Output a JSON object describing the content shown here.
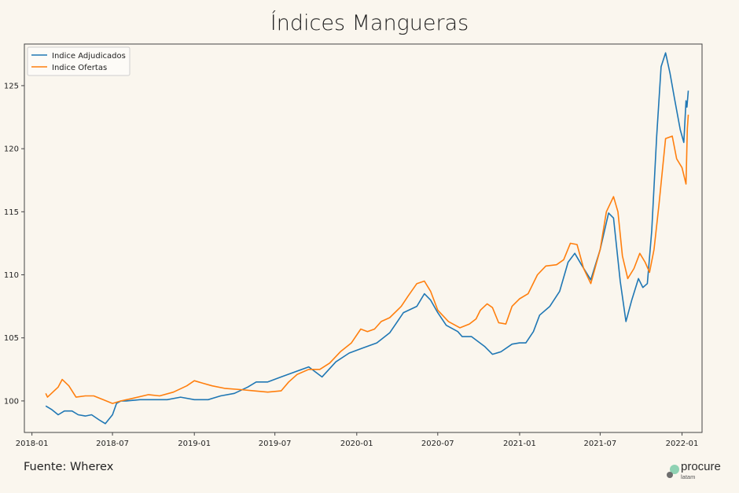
{
  "page": {
    "title": "Índices Mangueras",
    "source": "Fuente: Wherex"
  },
  "brand": {
    "name": "procure",
    "sub": "latam",
    "color": "#7cc7a8"
  },
  "chart_data": {
    "type": "line",
    "title": "Índices Mangueras",
    "xlabel": "",
    "ylabel": "",
    "background": "#faf6ee",
    "grid": false,
    "legend_position": "top-left",
    "xlim": [
      "2017-12-15",
      "2022-02-15"
    ],
    "ylim": [
      97.5,
      128.3
    ],
    "x_ticks": [
      "2018-01",
      "2018-07",
      "2019-01",
      "2019-07",
      "2020-01",
      "2020-07",
      "2021-01",
      "2021-07",
      "2022-01"
    ],
    "y_ticks": [
      100,
      105,
      110,
      115,
      120,
      125
    ],
    "series": [
      {
        "name": "Indice Adjudicados",
        "color": "#1f77b4",
        "points": [
          [
            "2018-02-01",
            99.6
          ],
          [
            "2018-02-15",
            99.3
          ],
          [
            "2018-03-01",
            98.9
          ],
          [
            "2018-03-15",
            99.2
          ],
          [
            "2018-04-01",
            99.2
          ],
          [
            "2018-04-15",
            98.9
          ],
          [
            "2018-05-01",
            98.8
          ],
          [
            "2018-05-15",
            98.9
          ],
          [
            "2018-06-01",
            98.5
          ],
          [
            "2018-06-15",
            98.2
          ],
          [
            "2018-07-01",
            98.9
          ],
          [
            "2018-07-10",
            99.8
          ],
          [
            "2018-07-20",
            100.0
          ],
          [
            "2018-08-01",
            100.0
          ],
          [
            "2018-09-01",
            100.1
          ],
          [
            "2018-10-01",
            100.1
          ],
          [
            "2018-11-01",
            100.1
          ],
          [
            "2018-12-01",
            100.3
          ],
          [
            "2019-01-01",
            100.1
          ],
          [
            "2019-02-01",
            100.1
          ],
          [
            "2019-03-01",
            100.4
          ],
          [
            "2019-04-01",
            100.6
          ],
          [
            "2019-05-01",
            101.1
          ],
          [
            "2019-05-20",
            101.5
          ],
          [
            "2019-06-15",
            101.5
          ],
          [
            "2019-07-15",
            101.9
          ],
          [
            "2019-08-15",
            102.3
          ],
          [
            "2019-09-15",
            102.7
          ],
          [
            "2019-10-15",
            101.9
          ],
          [
            "2019-11-15",
            103.1
          ],
          [
            "2019-12-15",
            103.8
          ],
          [
            "2020-01-15",
            104.2
          ],
          [
            "2020-02-15",
            104.6
          ],
          [
            "2020-03-15",
            105.4
          ],
          [
            "2020-04-15",
            107.0
          ],
          [
            "2020-05-15",
            107.5
          ],
          [
            "2020-06-01",
            108.5
          ],
          [
            "2020-06-15",
            108.0
          ],
          [
            "2020-07-01",
            107.0
          ],
          [
            "2020-07-20",
            106.0
          ],
          [
            "2020-08-15",
            105.5
          ],
          [
            "2020-08-25",
            105.1
          ],
          [
            "2020-09-15",
            105.1
          ],
          [
            "2020-10-15",
            104.3
          ],
          [
            "2020-11-01",
            103.7
          ],
          [
            "2020-11-20",
            103.9
          ],
          [
            "2020-12-15",
            104.5
          ],
          [
            "2021-01-01",
            104.6
          ],
          [
            "2021-01-15",
            104.6
          ],
          [
            "2021-02-01",
            105.5
          ],
          [
            "2021-02-15",
            106.8
          ],
          [
            "2021-03-10",
            107.5
          ],
          [
            "2021-04-01",
            108.7
          ],
          [
            "2021-04-20",
            111.0
          ],
          [
            "2021-05-05",
            111.7
          ],
          [
            "2021-05-20",
            110.8
          ],
          [
            "2021-06-10",
            109.6
          ],
          [
            "2021-07-01",
            112.0
          ],
          [
            "2021-07-20",
            114.9
          ],
          [
            "2021-07-31",
            114.5
          ],
          [
            "2021-08-15",
            109.5
          ],
          [
            "2021-08-28",
            106.3
          ],
          [
            "2021-09-10",
            108.0
          ],
          [
            "2021-09-25",
            109.7
          ],
          [
            "2021-10-05",
            109.0
          ],
          [
            "2021-10-15",
            109.3
          ],
          [
            "2021-10-25",
            113.5
          ],
          [
            "2021-11-05",
            121.0
          ],
          [
            "2021-11-15",
            126.5
          ],
          [
            "2021-11-25",
            127.6
          ],
          [
            "2021-12-05",
            126.0
          ],
          [
            "2021-12-15",
            124.0
          ],
          [
            "2021-12-28",
            121.5
          ],
          [
            "2022-01-05",
            120.5
          ],
          [
            "2022-01-10",
            123.8
          ],
          [
            "2022-01-12",
            123.3
          ],
          [
            "2022-01-15",
            124.6
          ]
        ]
      },
      {
        "name": "Indice Ofertas",
        "color": "#ff7f0e",
        "points": [
          [
            "2018-02-01",
            100.6
          ],
          [
            "2018-02-05",
            100.3
          ],
          [
            "2018-02-20",
            100.8
          ],
          [
            "2018-03-01",
            101.1
          ],
          [
            "2018-03-10",
            101.7
          ],
          [
            "2018-03-25",
            101.2
          ],
          [
            "2018-04-10",
            100.3
          ],
          [
            "2018-05-01",
            100.4
          ],
          [
            "2018-05-20",
            100.4
          ],
          [
            "2018-06-10",
            100.1
          ],
          [
            "2018-07-01",
            99.8
          ],
          [
            "2018-07-20",
            100.0
          ],
          [
            "2018-08-15",
            100.2
          ],
          [
            "2018-09-20",
            100.5
          ],
          [
            "2018-10-15",
            100.4
          ],
          [
            "2018-11-15",
            100.7
          ],
          [
            "2018-12-15",
            101.2
          ],
          [
            "2019-01-01",
            101.6
          ],
          [
            "2019-01-20",
            101.4
          ],
          [
            "2019-02-10",
            101.2
          ],
          [
            "2019-03-10",
            101.0
          ],
          [
            "2019-04-15",
            100.9
          ],
          [
            "2019-05-15",
            100.8
          ],
          [
            "2019-06-15",
            100.7
          ],
          [
            "2019-07-15",
            100.8
          ],
          [
            "2019-08-01",
            101.5
          ],
          [
            "2019-08-20",
            102.1
          ],
          [
            "2019-09-15",
            102.5
          ],
          [
            "2019-10-10",
            102.5
          ],
          [
            "2019-11-01",
            103.0
          ],
          [
            "2019-11-25",
            103.9
          ],
          [
            "2019-12-20",
            104.6
          ],
          [
            "2020-01-10",
            105.7
          ],
          [
            "2020-01-25",
            105.5
          ],
          [
            "2020-02-10",
            105.7
          ],
          [
            "2020-02-25",
            106.3
          ],
          [
            "2020-03-15",
            106.6
          ],
          [
            "2020-04-10",
            107.5
          ],
          [
            "2020-04-25",
            108.3
          ],
          [
            "2020-05-15",
            109.3
          ],
          [
            "2020-06-01",
            109.5
          ],
          [
            "2020-06-15",
            108.7
          ],
          [
            "2020-07-01",
            107.2
          ],
          [
            "2020-07-25",
            106.3
          ],
          [
            "2020-08-20",
            105.8
          ],
          [
            "2020-09-10",
            106.1
          ],
          [
            "2020-09-25",
            106.5
          ],
          [
            "2020-10-05",
            107.2
          ],
          [
            "2020-10-20",
            107.7
          ],
          [
            "2020-11-01",
            107.4
          ],
          [
            "2020-11-15",
            106.2
          ],
          [
            "2020-12-01",
            106.1
          ],
          [
            "2020-12-15",
            107.5
          ],
          [
            "2021-01-01",
            108.1
          ],
          [
            "2021-01-20",
            108.5
          ],
          [
            "2021-02-10",
            110.0
          ],
          [
            "2021-03-01",
            110.7
          ],
          [
            "2021-03-25",
            110.8
          ],
          [
            "2021-04-10",
            111.2
          ],
          [
            "2021-04-25",
            112.5
          ],
          [
            "2021-05-10",
            112.4
          ],
          [
            "2021-05-25",
            110.5
          ],
          [
            "2021-06-10",
            109.3
          ],
          [
            "2021-07-01",
            112.0
          ],
          [
            "2021-07-15",
            115.0
          ],
          [
            "2021-07-31",
            116.2
          ],
          [
            "2021-08-10",
            115.0
          ],
          [
            "2021-08-20",
            111.5
          ],
          [
            "2021-09-01",
            109.7
          ],
          [
            "2021-09-15",
            110.5
          ],
          [
            "2021-09-28",
            111.7
          ],
          [
            "2021-10-10",
            111.0
          ],
          [
            "2021-10-20",
            110.2
          ],
          [
            "2021-10-30",
            112.0
          ],
          [
            "2021-11-10",
            115.5
          ],
          [
            "2021-11-25",
            120.8
          ],
          [
            "2021-12-10",
            121.0
          ],
          [
            "2021-12-20",
            119.2
          ],
          [
            "2022-01-01",
            118.5
          ],
          [
            "2022-01-10",
            117.2
          ],
          [
            "2022-01-13",
            121.6
          ],
          [
            "2022-01-15",
            122.7
          ]
        ]
      }
    ]
  }
}
